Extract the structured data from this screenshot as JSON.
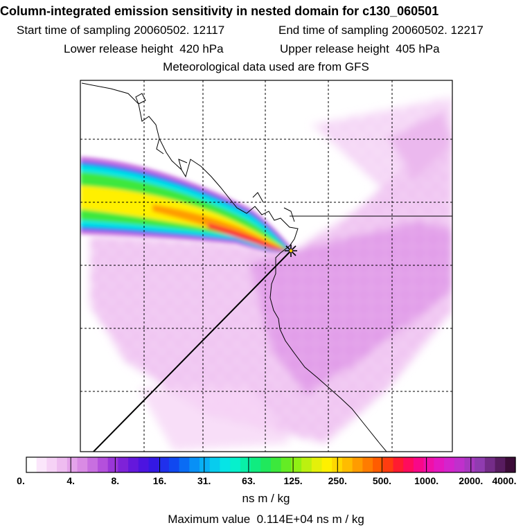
{
  "header": {
    "title": "Column-integrated emission sensitivity in nested domain for c130_060501",
    "start_time": "Start time of sampling 20060502. 12117",
    "end_time": "End time of sampling 20060502. 12217",
    "lower_release": "Lower release height  420 hPa",
    "upper_release": "Upper release height  405 hPa",
    "met_data": "Meteorological data used are from GFS"
  },
  "colorbar": {
    "tick_labels": [
      "0.",
      "4.",
      "8.",
      "16.",
      "31.",
      "63.",
      "125.",
      "250.",
      "500.",
      "1000.",
      "2000.",
      "4000."
    ],
    "colors": [
      "#ffffff",
      "#fbe6fb",
      "#f6d2f6",
      "#eebcf0",
      "#e4a3ea",
      "#d98be4",
      "#c86fe0",
      "#b450dc",
      "#9a36d8",
      "#7e22d8",
      "#6418dc",
      "#4c14e0",
      "#3418e4",
      "#2030ec",
      "#1048f0",
      "#0a6cf4",
      "#0890f6",
      "#08b0f4",
      "#08ccee",
      "#06e4e6",
      "#06f0cc",
      "#08f0a8",
      "#10ec80",
      "#20e85c",
      "#3ce83c",
      "#64ec24",
      "#90f014",
      "#bcf010",
      "#e4f00a",
      "#fff000",
      "#ffd800",
      "#ffbc00",
      "#ff9c00",
      "#ff7c00",
      "#ff5c00",
      "#ff3c10",
      "#ff1c30",
      "#ff0c5c",
      "#f80888",
      "#f010a8",
      "#e418c0",
      "#d424cc",
      "#c030cc",
      "#a838c0",
      "#903cb0",
      "#742c88",
      "#581c60",
      "#3c0c38"
    ],
    "units": "ns m / kg"
  },
  "footer": {
    "max_value": "Maximum value  0.114E+04 ns m / kg"
  },
  "map": {
    "receptor_marker": "star",
    "grid": "dashed",
    "field_colors": {
      "background_low": "#f6d2f6",
      "background_mid": "#e4a3ea",
      "plume_outer": "#c86fe0",
      "plume_blue": "#0a6cf4",
      "plume_cyan": "#06e4e6",
      "plume_green": "#3ce83c",
      "plume_yellow": "#fff000",
      "plume_orange": "#ff9c00",
      "plume_red": "#ff1c30"
    }
  }
}
